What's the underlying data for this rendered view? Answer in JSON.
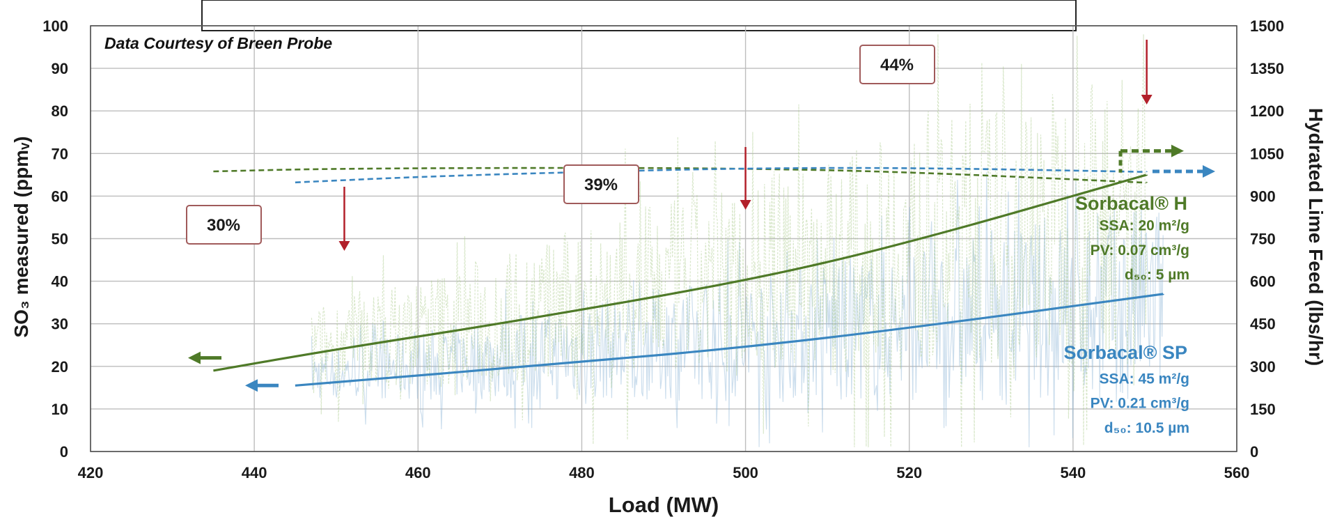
{
  "chart_data": {
    "type": "line",
    "title": "",
    "annotation": "Data Courtesy of Breen Probe",
    "xlabel": "Load (MW)",
    "ylabel": "SO₃ measured (ppmᵥ)",
    "y2label": "Hydrated Lime Feed (lbs/hr)",
    "xlim": [
      420,
      560
    ],
    "ylim": [
      0,
      100
    ],
    "y2lim": [
      0,
      1500
    ],
    "xticks": [
      420,
      440,
      460,
      480,
      500,
      520,
      540,
      560
    ],
    "yticks": [
      0,
      10,
      20,
      30,
      40,
      50,
      60,
      70,
      80,
      90,
      100
    ],
    "y2ticks": [
      0,
      150,
      300,
      450,
      600,
      750,
      900,
      1050,
      1200,
      1350,
      1500
    ],
    "grid": true,
    "series": [
      {
        "name": "Sorbacal® H",
        "axis": "left",
        "style": "solid",
        "color": "#4f7a28",
        "x": [
          435,
          450,
          470,
          500,
          520,
          549
        ],
        "y": [
          19,
          24,
          30,
          40,
          49,
          65
        ]
      },
      {
        "name": "Sorbacal® SP",
        "axis": "left",
        "style": "solid",
        "color": "#3a86c0",
        "x": [
          445,
          480,
          500,
          520,
          551
        ],
        "y": [
          15.5,
          21,
          24.5,
          29,
          37
        ]
      },
      {
        "name": "Sorbacal® H feed",
        "axis": "right",
        "style": "dashed",
        "color": "#4f7a28",
        "x": [
          435,
          450,
          480,
          500,
          520,
          549
        ],
        "y": [
          987,
          997,
          1000,
          997,
          985,
          947
        ]
      },
      {
        "name": "Sorbacal® SP feed",
        "axis": "right",
        "style": "dashed",
        "color": "#3a86c0",
        "x": [
          445,
          460,
          480,
          500,
          520,
          549
        ],
        "y": [
          948,
          968,
          985,
          998,
          1000,
          985
        ]
      }
    ],
    "reductions": [
      {
        "label": "30%",
        "x": 451
      },
      {
        "label": "39%",
        "x": 500
      },
      {
        "label": "44%",
        "x": 549
      }
    ],
    "products": [
      {
        "name": "Sorbacal® H",
        "color": "#4f7a28",
        "specs": [
          "SSA: 20 m²/g",
          "PV: 0.07 cm³/g",
          "d₅₀: 5 µm"
        ]
      },
      {
        "name": "Sorbacal® SP",
        "color": "#3a86c0",
        "specs": [
          "SSA: 45 m²/g",
          "PV: 0.21 cm³/g",
          "d₅₀: 10.5 µm"
        ]
      }
    ],
    "colors": {
      "green": "#4f7a28",
      "blue": "#3a86c0",
      "arrow_red": "#b2202a",
      "box_border": "#a05a5a"
    }
  }
}
